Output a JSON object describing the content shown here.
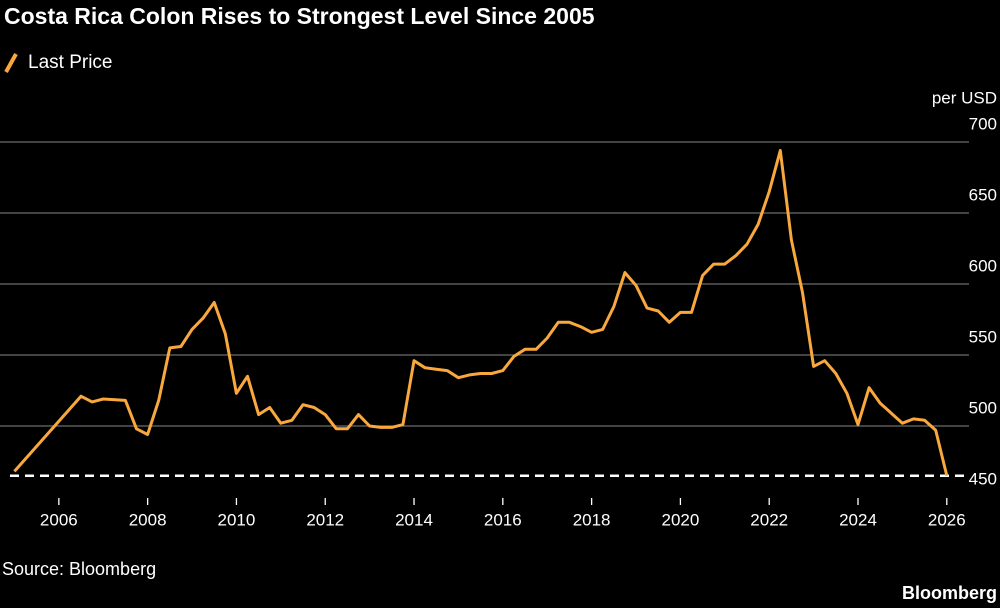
{
  "chart_data": {
    "type": "line",
    "title": "Costa Rica Colon Rises to Strongest Level Since 2005",
    "y_axis_label": "per USD",
    "source": "Source: Bloomberg",
    "brand": "Bloomberg",
    "grid": true,
    "legend": "top-left",
    "xlim": [
      2004.9,
      2026.5
    ],
    "xticks": [
      2006,
      2008,
      2010,
      2012,
      2014,
      2016,
      2018,
      2020,
      2022,
      2024,
      2026
    ],
    "ylim": [
      450,
      700
    ],
    "yticks": [
      450,
      500,
      550,
      600,
      650,
      700
    ],
    "last_value_line": true,
    "x": [
      2005.0,
      2006.5,
      2006.75,
      2007.0,
      2007.5,
      2007.75,
      2008.0,
      2008.25,
      2008.5,
      2008.75,
      2009.0,
      2009.25,
      2009.5,
      2009.75,
      2010.0,
      2010.25,
      2010.5,
      2010.75,
      2011.0,
      2011.25,
      2011.5,
      2011.75,
      2012.0,
      2012.25,
      2012.5,
      2012.75,
      2013.0,
      2013.25,
      2013.5,
      2013.75,
      2014.0,
      2014.25,
      2014.5,
      2014.75,
      2015.0,
      2015.25,
      2015.5,
      2015.75,
      2016.0,
      2016.25,
      2016.5,
      2016.75,
      2017.0,
      2017.25,
      2017.5,
      2017.75,
      2018.0,
      2018.25,
      2018.5,
      2018.75,
      2019.0,
      2019.25,
      2019.5,
      2019.75,
      2020.0,
      2020.25,
      2020.5,
      2020.75,
      2021.0,
      2021.25,
      2021.5,
      2021.75,
      2022.0,
      2022.25,
      2022.5,
      2022.75,
      2023.0,
      2023.25,
      2023.5,
      2023.75,
      2024.0,
      2024.25,
      2024.5,
      2024.75,
      2025.0,
      2025.25,
      2025.5,
      2025.75,
      2026.0
    ],
    "series": [
      {
        "name": "Last Price",
        "color": "#f8a83c",
        "values": [
          468,
          521,
          517,
          519,
          518,
          498,
          494,
          518,
          555,
          556,
          568,
          576,
          587,
          565,
          523,
          535,
          508,
          513,
          502,
          504,
          515,
          513,
          508,
          498,
          498,
          508,
          500,
          499,
          499,
          501,
          546,
          541,
          540,
          539,
          534,
          536,
          537,
          537,
          539,
          549,
          554,
          554,
          562,
          573,
          573,
          570,
          566,
          568,
          584,
          608,
          599,
          583,
          581,
          573,
          580,
          580,
          606,
          614,
          614,
          620,
          628,
          642,
          665,
          694,
          631,
          594,
          542,
          546,
          537,
          523,
          501,
          527,
          516,
          509,
          502,
          505,
          504,
          497,
          465
        ]
      }
    ]
  }
}
